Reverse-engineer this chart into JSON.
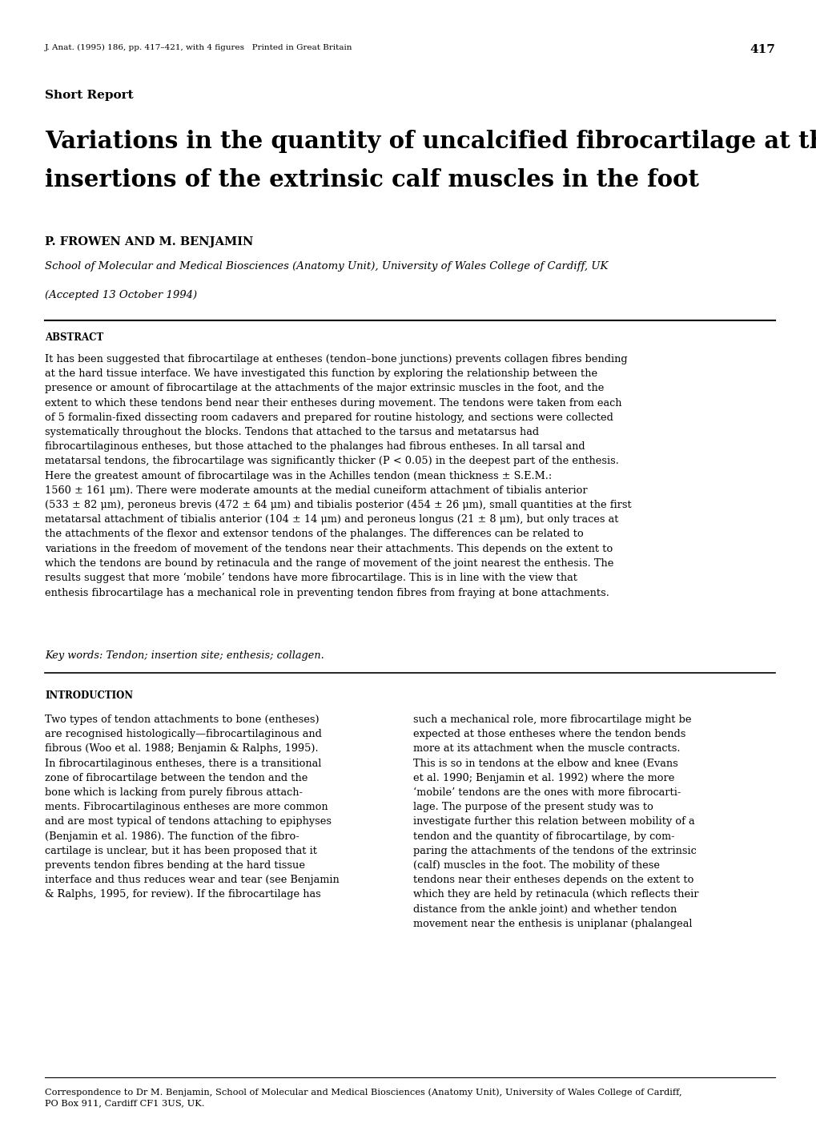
{
  "bg_color": "#ffffff",
  "header_journal": "J. Anat. (1995) 186, pp. 417–421, with 4 figures   Printed in Great Britain",
  "header_page": "417",
  "section_label": "Short Report",
  "title_line1": "Variations in the quantity of uncalcified fibrocartilage at the",
  "title_line2": "insertions of the extrinsic calf muscles in the foot",
  "authors": "P. FROWEN AND M. BENJAMIN",
  "affiliation": "School of Molecular and Medical Biosciences (Anatomy Unit), University of Wales College of Cardiff, UK",
  "accepted": "(Accepted 13 October 1994)",
  "abstract_label": "ABSTRACT",
  "abstract_text": "It has been suggested that fibrocartilage at entheses (tendon–bone junctions) prevents collagen fibres bending\nat the hard tissue interface. We have investigated this function by exploring the relationship between the\npresence or amount of fibrocartilage at the attachments of the major extrinsic muscles in the foot, and the\nextent to which these tendons bend near their entheses during movement. The tendons were taken from each\nof 5 formalin-fixed dissecting room cadavers and prepared for routine histology, and sections were collected\nsystematically throughout the blocks. Tendons that attached to the tarsus and metatarsus had\nfibrocartilaginous entheses, but those attached to the phalanges had fibrous entheses. In all tarsal and\nmetatarsal tendons, the fibrocartilage was significantly thicker (P < 0.05) in the deepest part of the enthesis.\nHere the greatest amount of fibrocartilage was in the Achilles tendon (mean thickness ± S.E.M.:\n1560 ± 161 μm). There were moderate amounts at the medial cuneiform attachment of tibialis anterior\n(533 ± 82 μm), peroneus brevis (472 ± 64 μm) and tibialis posterior (454 ± 26 μm), small quantities at the first\nmetatarsal attachment of tibialis anterior (104 ± 14 μm) and peroneus longus (21 ± 8 μm), but only traces at\nthe attachments of the flexor and extensor tendons of the phalanges. The differences can be related to\nvariations in the freedom of movement of the tendons near their attachments. This depends on the extent to\nwhich the tendons are bound by retinacula and the range of movement of the joint nearest the enthesis. The\nresults suggest that more ‘mobile’ tendons have more fibrocartilage. This is in line with the view that\nenthesis fibrocartilage has a mechanical role in preventing tendon fibres from fraying at bone attachments.",
  "keywords_text": "Key words: Tendon; insertion site; enthesis; collagen.",
  "intro_label": "INTRODUCTION",
  "intro_col1": "Two types of tendon attachments to bone (entheses)\nare recognised histologically—fibrocartilaginous and\nfibrous (Woo et al. 1988; Benjamin & Ralphs, 1995).\nIn fibrocartilaginous entheses, there is a transitional\nzone of fibrocartilage between the tendon and the\nbone which is lacking from purely fibrous attach-\nments. Fibrocartilaginous entheses are more common\nand are most typical of tendons attaching to epiphyses\n(Benjamin et al. 1986). The function of the fibro-\ncartilage is unclear, but it has been proposed that it\nprevents tendon fibres bending at the hard tissue\ninterface and thus reduces wear and tear (see Benjamin\n& Ralphs, 1995, for review). If the fibrocartilage has",
  "intro_col2": "such a mechanical role, more fibrocartilage might be\nexpected at those entheses where the tendon bends\nmore at its attachment when the muscle contracts.\nThis is so in tendons at the elbow and knee (Evans\net al. 1990; Benjamin et al. 1992) where the more\n‘mobile’ tendons are the ones with more fibrocarti-\nlage. The purpose of the present study was to\ninvestigate further this relation between mobility of a\ntendon and the quantity of fibrocartilage, by com-\nparing the attachments of the tendons of the extrinsic\n(calf) muscles in the foot. The mobility of these\ntendons near their entheses depends on the extent to\nwhich they are held by retinacula (which reflects their\ndistance from the ankle joint) and whether tendon\nmovement near the enthesis is uniplanar (phalangeal",
  "footer_text": "Correspondence to Dr M. Benjamin, School of Molecular and Medical Biosciences (Anatomy Unit), University of Wales College of Cardiff,\nPO Box 911, Cardiff CF1 3US, UK."
}
